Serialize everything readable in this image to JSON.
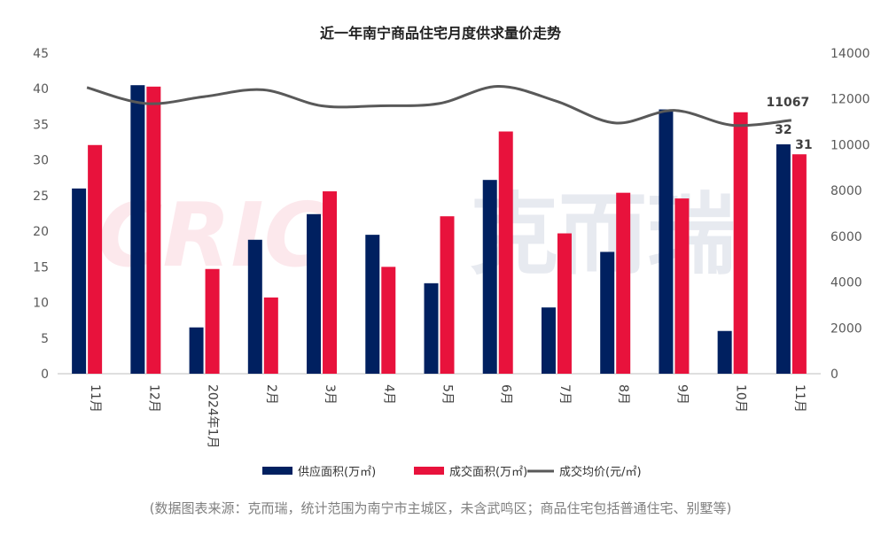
{
  "chart_data": {
    "type": "bar",
    "title": "近一年南宁商品住宅月度供求量价走势",
    "categories": [
      "11月",
      "12月",
      "2024年1月",
      "2月",
      "3月",
      "4月",
      "5月",
      "6月",
      "7月",
      "8月",
      "9月",
      "10月",
      "11月"
    ],
    "series": [
      {
        "name": "供应面积(万㎡)",
        "type": "bar",
        "axis": "left",
        "color": "#002060",
        "values": [
          26,
          40.5,
          6.5,
          18.8,
          22.4,
          19.5,
          12.7,
          27.2,
          9.3,
          17.1,
          37.1,
          6,
          32.2
        ]
      },
      {
        "name": "成交面积(万㎡)",
        "type": "bar",
        "axis": "left",
        "color": "#E8123C",
        "values": [
          32.1,
          40.3,
          14.7,
          10.7,
          25.6,
          15,
          22.1,
          34,
          19.7,
          25.4,
          24.6,
          36.7,
          30.8
        ]
      },
      {
        "name": "成交均价(元/㎡)",
        "type": "line",
        "axis": "right",
        "color": "#595959",
        "values": [
          12500,
          11800,
          12100,
          12400,
          11700,
          11700,
          11800,
          12550,
          11900,
          10950,
          11500,
          10850,
          11067
        ]
      }
    ],
    "y_left": {
      "min": 0,
      "max": 45,
      "ticks": [
        "0",
        "5",
        "10",
        "15",
        "20",
        "25",
        "30",
        "35",
        "40",
        "45"
      ]
    },
    "y_right": {
      "min": 0,
      "max": 14000,
      "ticks": [
        "0",
        "2000",
        "4000",
        "6000",
        "8000",
        "10000",
        "12000",
        "14000"
      ]
    },
    "annotations": {
      "last_price": "11067",
      "last_supply": "32",
      "last_deal": "31"
    },
    "legend_position": "bottom-center",
    "watermark": "CRIC 克而瑞"
  },
  "source_note": "(数据图表来源：克而瑞，统计范围为南宁市主城区，未含武鸣区；商品住宅包括普通住宅、别墅等)"
}
